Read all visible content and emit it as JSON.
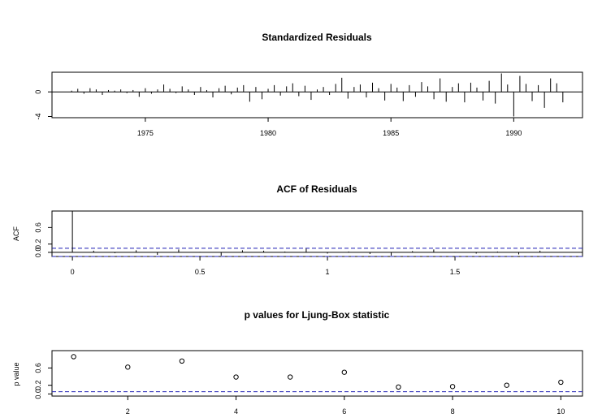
{
  "chart_data": [
    {
      "type": "line",
      "title": "Standardized Residuals",
      "xlabel": "",
      "ylabel": "",
      "xlim": [
        1971.2,
        1992.8
      ],
      "ylim": [
        -4.2,
        3.2
      ],
      "xticks": [
        1975,
        1980,
        1985,
        1990
      ],
      "yticks": [
        -4,
        0
      ],
      "series": [
        {
          "x": [
            1972.0,
            1972.25,
            1972.5,
            1972.75,
            1973.0,
            1973.25,
            1973.5,
            1973.75,
            1974.0,
            1974.25,
            1974.5,
            1974.75,
            1975.0,
            1975.25,
            1975.5,
            1975.75,
            1976.0,
            1976.25,
            1976.5,
            1976.75,
            1977.0,
            1977.25,
            1977.5,
            1977.75,
            1978.0,
            1978.25,
            1978.5,
            1978.75,
            1979.0,
            1979.25,
            1979.5,
            1979.75,
            1980.0,
            1980.25,
            1980.5,
            1980.75,
            1981.0,
            1981.25,
            1981.5,
            1981.75,
            1982.0,
            1982.25,
            1982.5,
            1982.75,
            1983.0,
            1983.25,
            1983.5,
            1983.75,
            1984.0,
            1984.25,
            1984.5,
            1984.75,
            1985.0,
            1985.25,
            1985.5,
            1985.75,
            1986.0,
            1986.25,
            1986.5,
            1986.75,
            1987.0,
            1987.25,
            1987.5,
            1987.75,
            1988.0,
            1988.25,
            1988.5,
            1988.75,
            1989.0,
            1989.25,
            1989.5,
            1989.75,
            1990.0,
            1990.25,
            1990.5,
            1990.75,
            1991.0,
            1991.25,
            1991.5,
            1991.75,
            1992.0
          ],
          "values": [
            0.2,
            0.5,
            -0.3,
            0.6,
            0.4,
            -0.5,
            0.3,
            0.2,
            0.4,
            -0.2,
            0.3,
            -0.8,
            0.6,
            -0.3,
            0.4,
            1.2,
            0.5,
            -0.2,
            0.9,
            0.4,
            -0.5,
            0.8,
            0.3,
            -0.9,
            0.6,
            1.0,
            -0.4,
            0.7,
            1.1,
            -1.6,
            0.8,
            -1.2,
            0.5,
            1.1,
            -0.6,
            0.9,
            1.4,
            -0.7,
            1.0,
            -1.3,
            0.4,
            0.8,
            -0.5,
            1.3,
            2.3,
            -1.1,
            0.8,
            1.2,
            -0.9,
            1.5,
            0.6,
            -1.4,
            1.3,
            0.7,
            -1.5,
            1.1,
            -0.8,
            1.6,
            0.9,
            -1.2,
            2.2,
            -1.6,
            0.8,
            1.4,
            -1.7,
            1.5,
            0.7,
            -1.4,
            1.8,
            -1.9,
            3.0,
            1.2,
            -4.0,
            2.6,
            1.3,
            -1.5,
            1.1,
            -2.6,
            2.2,
            1.4,
            -1.7
          ]
        }
      ]
    },
    {
      "type": "bar",
      "title": "ACF of Residuals",
      "xlabel": "",
      "ylabel": "ACF",
      "xlim": [
        -0.08,
        2.0
      ],
      "ylim": [
        -0.1,
        1.0
      ],
      "xticks": [
        0.0,
        0.5,
        1.0,
        1.5
      ],
      "yticks": [
        0.0,
        0.2,
        0.6
      ],
      "ytick_labels": [
        "0.0",
        "0.2",
        "0.6"
      ],
      "confidence_band": 0.1,
      "series": [
        {
          "x": [
            0.0,
            0.0833,
            0.1667,
            0.25,
            0.3333,
            0.4167,
            0.5,
            0.5833,
            0.6667,
            0.75,
            0.8333,
            0.9167,
            1.0,
            1.0833,
            1.1667,
            1.25,
            1.3333,
            1.4167,
            1.5,
            1.5833,
            1.6667,
            1.75,
            1.8333
          ],
          "values": [
            1.0,
            0.04,
            -0.02,
            0.05,
            -0.06,
            0.07,
            0.01,
            -0.08,
            0.05,
            0.04,
            0.02,
            0.09,
            -0.03,
            0.02,
            -0.04,
            -0.08,
            0.03,
            0.07,
            0.01,
            -0.03,
            0.02,
            -0.05,
            0.04
          ]
        }
      ]
    },
    {
      "type": "scatter",
      "title": "p values for Ljung-Box statistic",
      "xlabel": "",
      "ylabel": "p value",
      "xlim": [
        0.6,
        10.4
      ],
      "ylim": [
        -0.05,
        1.0
      ],
      "xticks": [
        2,
        4,
        6,
        8,
        10
      ],
      "yticks": [
        0.0,
        0.2,
        0.6
      ],
      "ytick_labels": [
        "0.0",
        "0.2",
        "0.6"
      ],
      "reference_line": 0.05,
      "series": [
        {
          "x": [
            1,
            2,
            3,
            4,
            5,
            6,
            7,
            8,
            9,
            10
          ],
          "values": [
            0.86,
            0.62,
            0.76,
            0.39,
            0.39,
            0.5,
            0.16,
            0.17,
            0.2,
            0.27
          ]
        }
      ]
    }
  ]
}
